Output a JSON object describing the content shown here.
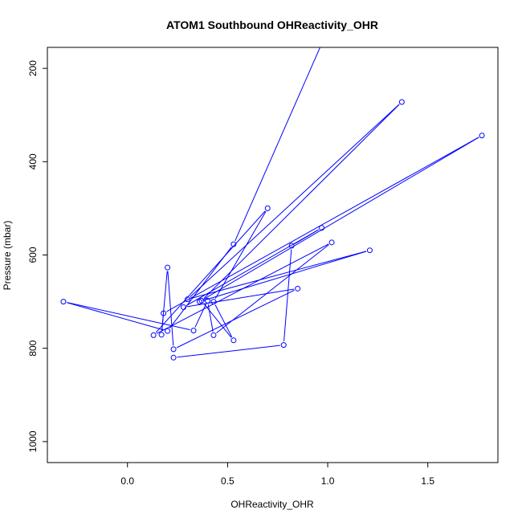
{
  "chart_data": {
    "type": "line",
    "title": "ATOM1 Southbound OHReactivity_OHR",
    "xlabel": "OHReactivity_OHR",
    "ylabel": "Pressure (mbar)",
    "xlim": [
      -0.4,
      1.85
    ],
    "ylim": [
      1045,
      155
    ],
    "y_reversed": true,
    "grid": false,
    "legend": "none",
    "x_ticks": [
      0.0,
      0.5,
      1.0,
      1.5
    ],
    "x_tick_labels": [
      "0.0",
      "0.5",
      "1.0",
      "1.5"
    ],
    "y_ticks": [
      200,
      400,
      600,
      800,
      1000
    ],
    "y_tick_labels": [
      "200",
      "400",
      "600",
      "800",
      "1000"
    ],
    "series": [
      {
        "color": "#0000ff",
        "marker": "open-circle",
        "points": [
          [
            0.23,
            820
          ],
          [
            0.78,
            793
          ],
          [
            0.82,
            580
          ],
          [
            0.97,
            542
          ],
          [
            0.28,
            712
          ],
          [
            0.85,
            672
          ],
          [
            0.23,
            802
          ],
          [
            0.2,
            627
          ],
          [
            0.17,
            771
          ],
          [
            0.18,
            725
          ],
          [
            1.77,
            344
          ],
          [
            0.36,
            700
          ],
          [
            1.21,
            590
          ],
          [
            0.3,
            695
          ],
          [
            1.37,
            272
          ],
          [
            0.37,
            698
          ],
          [
            0.53,
            783
          ],
          [
            0.43,
            700
          ],
          [
            0.7,
            500
          ],
          [
            0.13,
            772
          ],
          [
            1.02,
            573
          ],
          [
            0.43,
            772
          ],
          [
            0.4,
            698
          ],
          [
            0.33,
            762
          ],
          [
            -0.32,
            700
          ],
          [
            0.2,
            763
          ],
          [
            0.53,
            577
          ],
          [
            1.1,
            20
          ]
        ]
      }
    ]
  }
}
